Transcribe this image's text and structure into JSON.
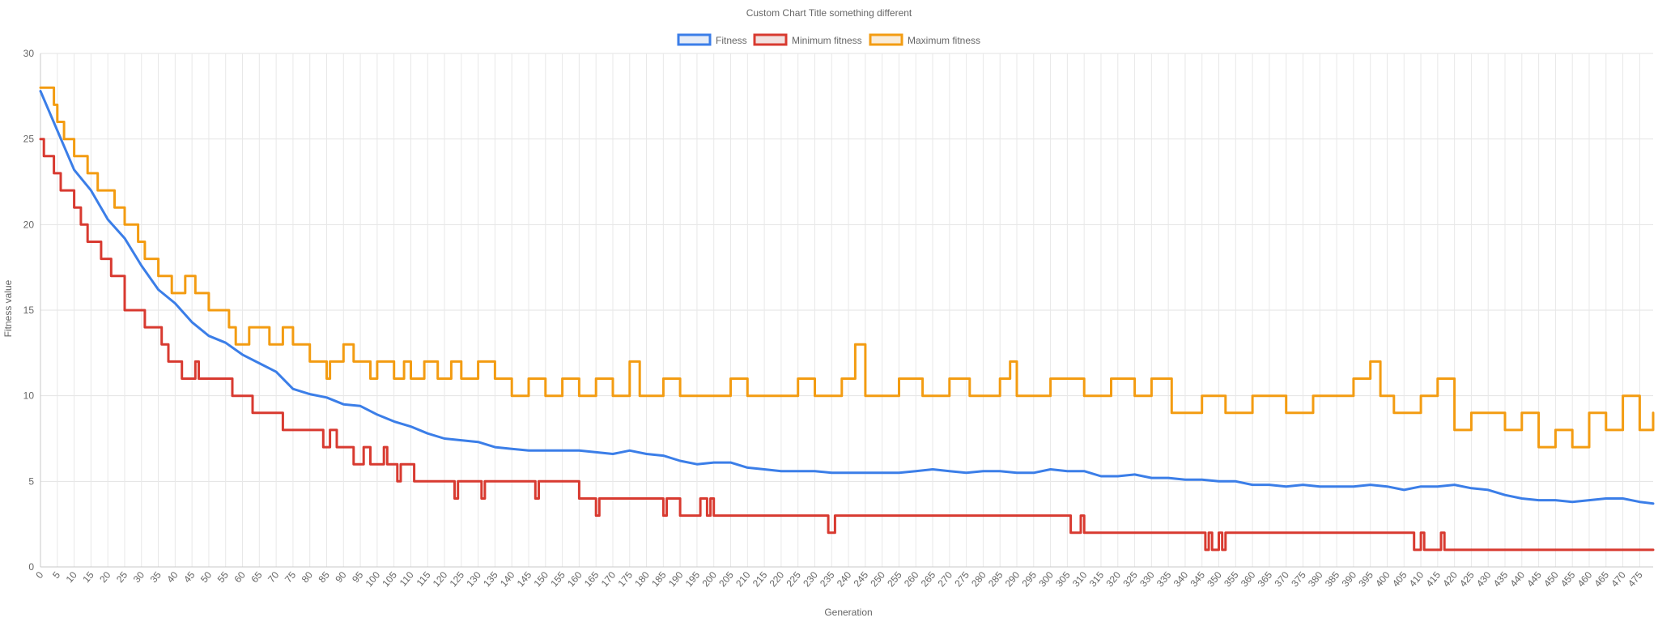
{
  "chart_data": {
    "type": "line",
    "title": "Custom Chart Title something different",
    "xlabel": "Generation",
    "ylabel": "Fitness value",
    "xlim": [
      0,
      479
    ],
    "ylim": [
      0,
      30
    ],
    "yticks": [
      0,
      5,
      10,
      15,
      20,
      25,
      30
    ],
    "xtick_step": 5,
    "grid": true,
    "legend_position": "top-center",
    "series": [
      {
        "name": "Fitness",
        "color": "#3b7ee8",
        "fill": "#e6ecf7",
        "keypoints": [
          [
            0,
            27.8
          ],
          [
            5,
            25.5
          ],
          [
            10,
            23.2
          ],
          [
            15,
            22.0
          ],
          [
            20,
            20.3
          ],
          [
            25,
            19.2
          ],
          [
            30,
            17.6
          ],
          [
            35,
            16.2
          ],
          [
            40,
            15.4
          ],
          [
            45,
            14.3
          ],
          [
            50,
            13.5
          ],
          [
            55,
            13.1
          ],
          [
            60,
            12.4
          ],
          [
            65,
            11.9
          ],
          [
            70,
            11.4
          ],
          [
            75,
            10.4
          ],
          [
            80,
            10.1
          ],
          [
            85,
            9.9
          ],
          [
            90,
            9.5
          ],
          [
            95,
            9.4
          ],
          [
            100,
            8.9
          ],
          [
            105,
            8.5
          ],
          [
            110,
            8.2
          ],
          [
            115,
            7.8
          ],
          [
            120,
            7.5
          ],
          [
            125,
            7.4
          ],
          [
            130,
            7.3
          ],
          [
            135,
            7.0
          ],
          [
            140,
            6.9
          ],
          [
            145,
            6.8
          ],
          [
            150,
            6.8
          ],
          [
            155,
            6.8
          ],
          [
            160,
            6.8
          ],
          [
            165,
            6.7
          ],
          [
            170,
            6.6
          ],
          [
            175,
            6.8
          ],
          [
            180,
            6.6
          ],
          [
            185,
            6.5
          ],
          [
            190,
            6.2
          ],
          [
            195,
            6.0
          ],
          [
            200,
            6.1
          ],
          [
            205,
            6.1
          ],
          [
            210,
            5.8
          ],
          [
            215,
            5.7
          ],
          [
            220,
            5.6
          ],
          [
            225,
            5.6
          ],
          [
            230,
            5.6
          ],
          [
            235,
            5.5
          ],
          [
            240,
            5.5
          ],
          [
            245,
            5.5
          ],
          [
            250,
            5.5
          ],
          [
            255,
            5.5
          ],
          [
            260,
            5.6
          ],
          [
            265,
            5.7
          ],
          [
            270,
            5.6
          ],
          [
            275,
            5.5
          ],
          [
            280,
            5.6
          ],
          [
            285,
            5.6
          ],
          [
            290,
            5.5
          ],
          [
            295,
            5.5
          ],
          [
            300,
            5.7
          ],
          [
            305,
            5.6
          ],
          [
            310,
            5.6
          ],
          [
            315,
            5.3
          ],
          [
            320,
            5.3
          ],
          [
            325,
            5.4
          ],
          [
            330,
            5.2
          ],
          [
            335,
            5.2
          ],
          [
            340,
            5.1
          ],
          [
            345,
            5.1
          ],
          [
            350,
            5.0
          ],
          [
            355,
            5.0
          ],
          [
            360,
            4.8
          ],
          [
            365,
            4.8
          ],
          [
            370,
            4.7
          ],
          [
            375,
            4.8
          ],
          [
            380,
            4.7
          ],
          [
            385,
            4.7
          ],
          [
            390,
            4.7
          ],
          [
            395,
            4.8
          ],
          [
            400,
            4.7
          ],
          [
            405,
            4.5
          ],
          [
            410,
            4.7
          ],
          [
            415,
            4.7
          ],
          [
            420,
            4.8
          ],
          [
            425,
            4.6
          ],
          [
            430,
            4.5
          ],
          [
            435,
            4.2
          ],
          [
            440,
            4.0
          ],
          [
            445,
            3.9
          ],
          [
            450,
            3.9
          ],
          [
            455,
            3.8
          ],
          [
            460,
            3.9
          ],
          [
            465,
            4.0
          ],
          [
            470,
            4.0
          ],
          [
            475,
            3.8
          ],
          [
            479,
            3.7
          ]
        ]
      },
      {
        "name": "Minimum fitness",
        "color": "#d83a30",
        "fill": "#f2e1e0",
        "steps": [
          [
            0,
            25
          ],
          [
            1,
            24
          ],
          [
            4,
            23
          ],
          [
            6,
            22
          ],
          [
            10,
            21
          ],
          [
            12,
            20
          ],
          [
            14,
            19
          ],
          [
            18,
            18
          ],
          [
            21,
            17
          ],
          [
            25,
            15
          ],
          [
            31,
            14
          ],
          [
            36,
            13
          ],
          [
            38,
            12
          ],
          [
            42,
            11
          ],
          [
            45,
            11
          ],
          [
            46,
            12
          ],
          [
            47,
            11
          ],
          [
            57,
            10
          ],
          [
            63,
            9
          ],
          [
            72,
            8
          ],
          [
            84,
            7
          ],
          [
            86,
            8
          ],
          [
            88,
            7
          ],
          [
            93,
            6
          ],
          [
            96,
            7
          ],
          [
            98,
            6
          ],
          [
            102,
            7
          ],
          [
            103,
            6
          ],
          [
            106,
            5
          ],
          [
            107,
            6
          ],
          [
            111,
            5
          ],
          [
            122,
            5
          ],
          [
            123,
            4
          ],
          [
            124,
            5
          ],
          [
            130,
            5
          ],
          [
            131,
            4
          ],
          [
            132,
            5
          ],
          [
            146,
            5
          ],
          [
            147,
            4
          ],
          [
            148,
            5
          ],
          [
            160,
            4
          ],
          [
            165,
            3
          ],
          [
            166,
            4
          ],
          [
            184,
            4
          ],
          [
            185,
            3
          ],
          [
            186,
            4
          ],
          [
            190,
            3
          ],
          [
            196,
            4
          ],
          [
            198,
            3
          ],
          [
            199,
            4
          ],
          [
            200,
            3
          ],
          [
            233,
            3
          ],
          [
            234,
            2
          ],
          [
            236,
            3
          ],
          [
            305,
            3
          ],
          [
            306,
            2
          ],
          [
            309,
            3
          ],
          [
            310,
            2
          ],
          [
            345,
            2
          ],
          [
            346,
            1
          ],
          [
            347,
            2
          ],
          [
            348,
            1
          ],
          [
            350,
            2
          ],
          [
            351,
            1
          ],
          [
            352,
            2
          ],
          [
            407,
            2
          ],
          [
            408,
            1
          ],
          [
            410,
            2
          ],
          [
            411,
            1
          ],
          [
            416,
            2
          ],
          [
            417,
            1
          ],
          [
            479,
            1
          ]
        ]
      },
      {
        "name": "Maximum fitness",
        "color": "#f39c12",
        "fill": "#f9ecd9",
        "steps": [
          [
            0,
            28
          ],
          [
            4,
            27
          ],
          [
            5,
            26
          ],
          [
            7,
            25
          ],
          [
            10,
            24
          ],
          [
            14,
            23
          ],
          [
            17,
            22
          ],
          [
            22,
            21
          ],
          [
            25,
            20
          ],
          [
            29,
            19
          ],
          [
            31,
            18
          ],
          [
            35,
            17
          ],
          [
            39,
            16
          ],
          [
            43,
            17
          ],
          [
            46,
            16
          ],
          [
            50,
            15
          ],
          [
            56,
            14
          ],
          [
            58,
            13
          ],
          [
            62,
            14
          ],
          [
            68,
            13
          ],
          [
            72,
            14
          ],
          [
            75,
            13
          ],
          [
            80,
            12
          ],
          [
            85,
            11
          ],
          [
            86,
            12
          ],
          [
            90,
            13
          ],
          [
            93,
            12
          ],
          [
            98,
            11
          ],
          [
            100,
            12
          ],
          [
            105,
            11
          ],
          [
            108,
            12
          ],
          [
            110,
            11
          ],
          [
            114,
            12
          ],
          [
            118,
            11
          ],
          [
            122,
            12
          ],
          [
            125,
            11
          ],
          [
            130,
            12
          ],
          [
            135,
            11
          ],
          [
            140,
            10
          ],
          [
            145,
            11
          ],
          [
            150,
            10
          ],
          [
            155,
            11
          ],
          [
            160,
            10
          ],
          [
            165,
            11
          ],
          [
            170,
            10
          ],
          [
            175,
            12
          ],
          [
            178,
            10
          ],
          [
            185,
            11
          ],
          [
            190,
            10
          ],
          [
            200,
            10
          ],
          [
            205,
            11
          ],
          [
            210,
            10
          ],
          [
            218,
            10
          ],
          [
            225,
            11
          ],
          [
            230,
            10
          ],
          [
            238,
            11
          ],
          [
            242,
            13
          ],
          [
            245,
            10
          ],
          [
            255,
            11
          ],
          [
            262,
            10
          ],
          [
            270,
            11
          ],
          [
            276,
            10
          ],
          [
            285,
            11
          ],
          [
            288,
            12
          ],
          [
            290,
            10
          ],
          [
            300,
            11
          ],
          [
            310,
            10
          ],
          [
            318,
            11
          ],
          [
            325,
            10
          ],
          [
            330,
            11
          ],
          [
            336,
            9
          ],
          [
            345,
            10
          ],
          [
            352,
            9
          ],
          [
            360,
            10
          ],
          [
            370,
            9
          ],
          [
            378,
            10
          ],
          [
            385,
            10
          ],
          [
            390,
            11
          ],
          [
            395,
            12
          ],
          [
            398,
            10
          ],
          [
            402,
            9
          ],
          [
            410,
            10
          ],
          [
            415,
            11
          ],
          [
            420,
            8
          ],
          [
            425,
            9
          ],
          [
            430,
            9
          ],
          [
            435,
            8
          ],
          [
            440,
            9
          ],
          [
            445,
            7
          ],
          [
            450,
            8
          ],
          [
            455,
            7
          ],
          [
            460,
            9
          ],
          [
            465,
            8
          ],
          [
            470,
            10
          ],
          [
            475,
            8
          ],
          [
            479,
            9
          ]
        ]
      }
    ]
  }
}
